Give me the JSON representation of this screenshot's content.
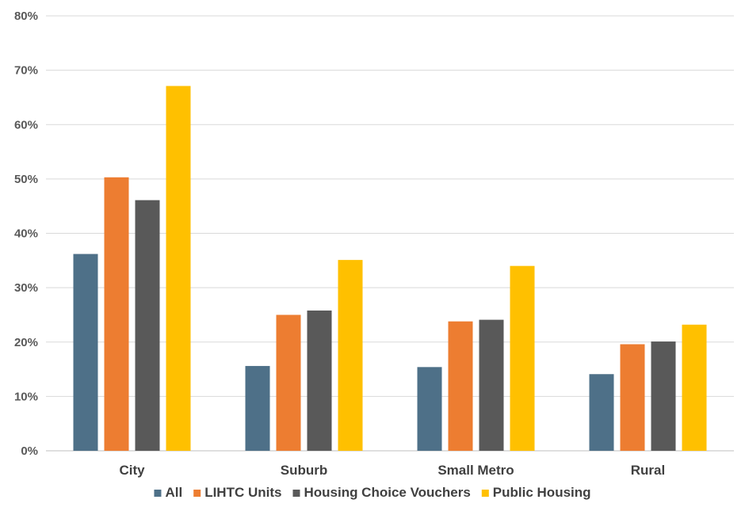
{
  "chart_data": {
    "type": "bar",
    "categories": [
      "City",
      "Suburb",
      "Small Metro",
      "Rural"
    ],
    "series": [
      {
        "name": "All",
        "color": "#4E7088",
        "values": [
          36.2,
          15.6,
          15.4,
          14.1
        ]
      },
      {
        "name": "LIHTC Units",
        "color": "#ED7D31",
        "values": [
          50.3,
          25.0,
          23.8,
          19.6
        ]
      },
      {
        "name": "Housing Choice Vouchers",
        "color": "#595959",
        "values": [
          46.1,
          25.8,
          24.1,
          20.1
        ]
      },
      {
        "name": "Public Housing",
        "color": "#FFC000",
        "values": [
          67.1,
          35.1,
          34.0,
          23.2
        ]
      }
    ],
    "ylim": [
      0,
      80
    ],
    "yticks": [
      "0%",
      "10%",
      "20%",
      "30%",
      "40%",
      "50%",
      "60%",
      "70%",
      "80%"
    ],
    "ytick_values": [
      0,
      10,
      20,
      30,
      40,
      50,
      60,
      70,
      80
    ],
    "grid": true,
    "legend_position": "bottom",
    "title": "",
    "xlabel": "",
    "ylabel": ""
  }
}
